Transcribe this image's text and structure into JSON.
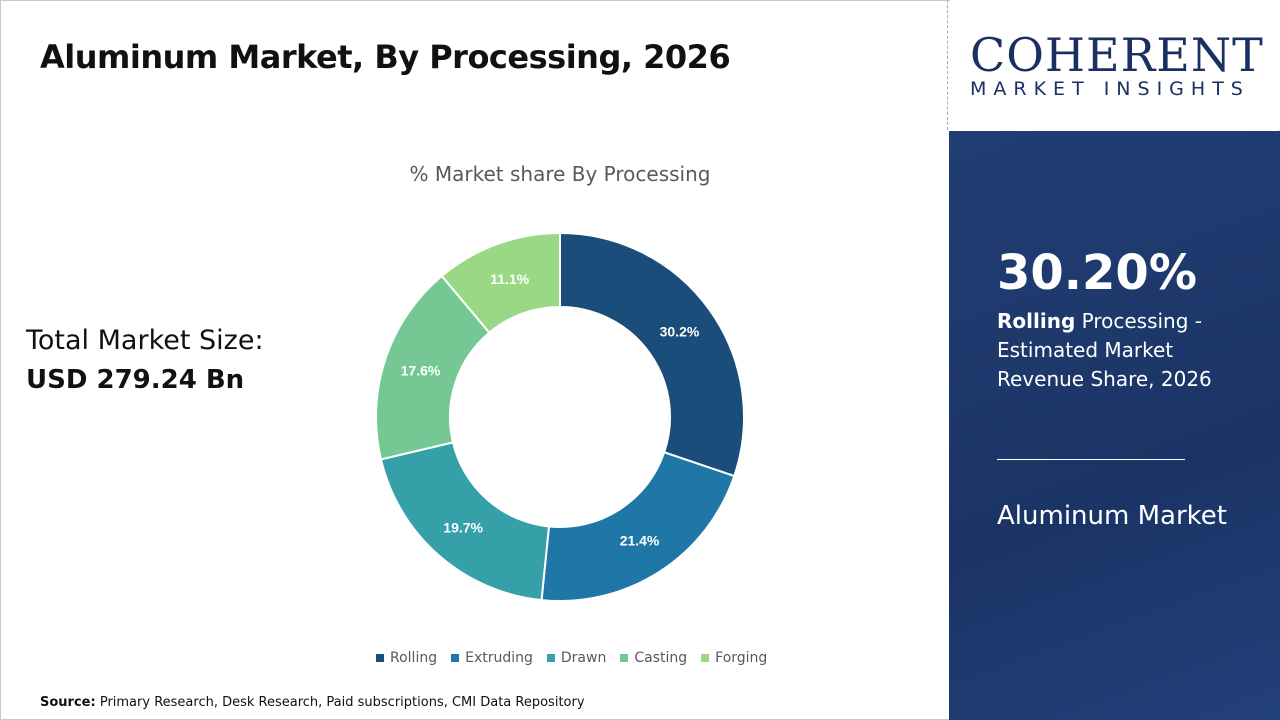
{
  "title": "Aluminum Market, By Processing, 2026",
  "total_label": "Total Market Size:",
  "total_value": "USD 279.24 Bn",
  "source_label": "Source:",
  "source_text": "Primary Research, Desk Research, Paid subscriptions, CMI Data Repository",
  "logo": {
    "line1": "COHERENT",
    "line2": "MARKET INSIGHTS"
  },
  "panel": {
    "percent": "30.20%",
    "highlight": "Rolling",
    "desc": "Processing - Estimated Market Revenue Share, 2026",
    "market": "Aluminum Market"
  },
  "chart_data": {
    "type": "pie",
    "donut": true,
    "title": "% Market share By Processing",
    "categories": [
      "Rolling",
      "Extruding",
      "Drawn",
      "Casting",
      "Forging"
    ],
    "values": [
      30.2,
      21.4,
      19.7,
      17.6,
      11.1
    ],
    "labels": [
      "30.2%",
      "21.4%",
      "19.7%",
      "17.6%",
      "11.1%"
    ],
    "colors": [
      "#1a4d7a",
      "#1f77a8",
      "#35a0a8",
      "#75c893",
      "#9bd886"
    ],
    "legend": "bottom"
  }
}
